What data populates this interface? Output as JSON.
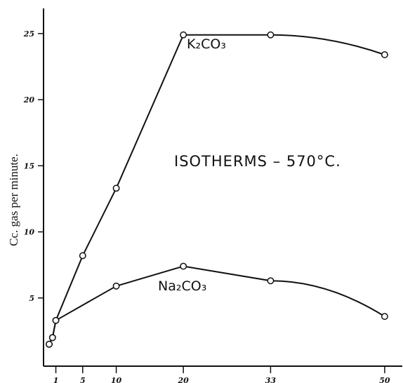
{
  "chart_data": {
    "type": "line",
    "title": "ISOTHERMS – 570°C.",
    "xlabel": "",
    "ylabel": "Cc. gas per minute.",
    "xlim": [
      0,
      52
    ],
    "ylim": [
      0,
      26
    ],
    "x_ticks": [
      1,
      5,
      10,
      20,
      33,
      50
    ],
    "x_tick_labels": [
      "1",
      "5",
      "10",
      "20",
      "33",
      "50"
    ],
    "y_ticks": [
      5,
      10,
      15,
      20,
      25
    ],
    "y_tick_labels": [
      "5",
      "10",
      "15",
      "20",
      "25"
    ],
    "grid": false,
    "series": [
      {
        "name": "K₂CO₃",
        "points": [
          {
            "x": 0,
            "y": 1.5
          },
          {
            "x": 0.5,
            "y": 2.0
          },
          {
            "x": 1,
            "y": 3.3
          },
          {
            "x": 5,
            "y": 8.2
          },
          {
            "x": 10,
            "y": 13.3
          },
          {
            "x": 20,
            "y": 24.9
          },
          {
            "x": 33,
            "y": 24.9
          },
          {
            "x": 50,
            "y": 23.4
          }
        ]
      },
      {
        "name": "Na₂CO₃",
        "points": [
          {
            "x": 0,
            "y": 1.5
          },
          {
            "x": 0.5,
            "y": 2.0
          },
          {
            "x": 1,
            "y": 3.3
          },
          {
            "x": 10,
            "y": 5.9
          },
          {
            "x": 20,
            "y": 7.4
          },
          {
            "x": 33,
            "y": 6.3
          },
          {
            "x": 50,
            "y": 3.6
          }
        ]
      }
    ]
  }
}
